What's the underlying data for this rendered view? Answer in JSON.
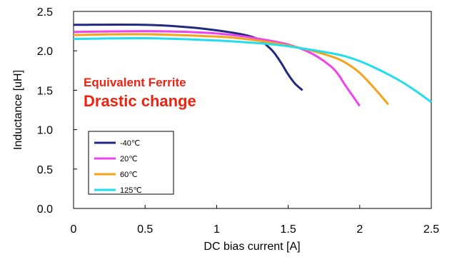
{
  "chart_data": {
    "type": "line",
    "xlabel": "DC bias current [A]",
    "ylabel": "Inductance [uH]",
    "xlim": [
      0,
      2.5
    ],
    "ylim": [
      0,
      2.5
    ],
    "x_ticks": [
      "0",
      "0.5",
      "1",
      "1.5",
      "2",
      "2.5"
    ],
    "y_ticks": [
      "0.0",
      "0.5",
      "1.0",
      "1.5",
      "2.0",
      "2.5"
    ],
    "grid": false,
    "legend_position": "bottom-left",
    "annotations": {
      "line1": "Equivalent Ferrite",
      "line2": "Drastic change",
      "color": "#ee2211"
    },
    "series": [
      {
        "name": "-40℃",
        "color": "#1f2a80",
        "points": [
          [
            0,
            2.33
          ],
          [
            0.5,
            2.33
          ],
          [
            0.8,
            2.3
          ],
          [
            1.0,
            2.26
          ],
          [
            1.2,
            2.2
          ],
          [
            1.3,
            2.14
          ],
          [
            1.35,
            2.07
          ],
          [
            1.4,
            1.98
          ],
          [
            1.45,
            1.85
          ],
          [
            1.5,
            1.7
          ],
          [
            1.55,
            1.58
          ],
          [
            1.6,
            1.5
          ]
        ]
      },
      {
        "name": "20℃",
        "color": "#ee44ee",
        "points": [
          [
            0,
            2.24
          ],
          [
            0.5,
            2.25
          ],
          [
            0.8,
            2.24
          ],
          [
            1.0,
            2.22
          ],
          [
            1.2,
            2.18
          ],
          [
            1.4,
            2.12
          ],
          [
            1.5,
            2.08
          ],
          [
            1.6,
            2.02
          ],
          [
            1.7,
            1.93
          ],
          [
            1.8,
            1.8
          ],
          [
            1.85,
            1.7
          ],
          [
            1.9,
            1.56
          ],
          [
            1.95,
            1.43
          ],
          [
            2.0,
            1.3
          ]
        ]
      },
      {
        "name": "60℃",
        "color": "#f5a31a",
        "points": [
          [
            0,
            2.2
          ],
          [
            0.5,
            2.21
          ],
          [
            1.0,
            2.18
          ],
          [
            1.2,
            2.15
          ],
          [
            1.4,
            2.1
          ],
          [
            1.6,
            2.03
          ],
          [
            1.8,
            1.93
          ],
          [
            1.9,
            1.85
          ],
          [
            2.0,
            1.72
          ],
          [
            2.1,
            1.53
          ],
          [
            2.2,
            1.32
          ]
        ]
      },
      {
        "name": "125℃",
        "color": "#22ddee",
        "points": [
          [
            0,
            2.15
          ],
          [
            0.5,
            2.16
          ],
          [
            1.0,
            2.13
          ],
          [
            1.4,
            2.08
          ],
          [
            1.6,
            2.03
          ],
          [
            1.8,
            1.97
          ],
          [
            1.9,
            1.93
          ],
          [
            2.0,
            1.87
          ],
          [
            2.1,
            1.79
          ],
          [
            2.2,
            1.7
          ],
          [
            2.3,
            1.6
          ],
          [
            2.4,
            1.48
          ],
          [
            2.5,
            1.35
          ]
        ]
      }
    ]
  }
}
